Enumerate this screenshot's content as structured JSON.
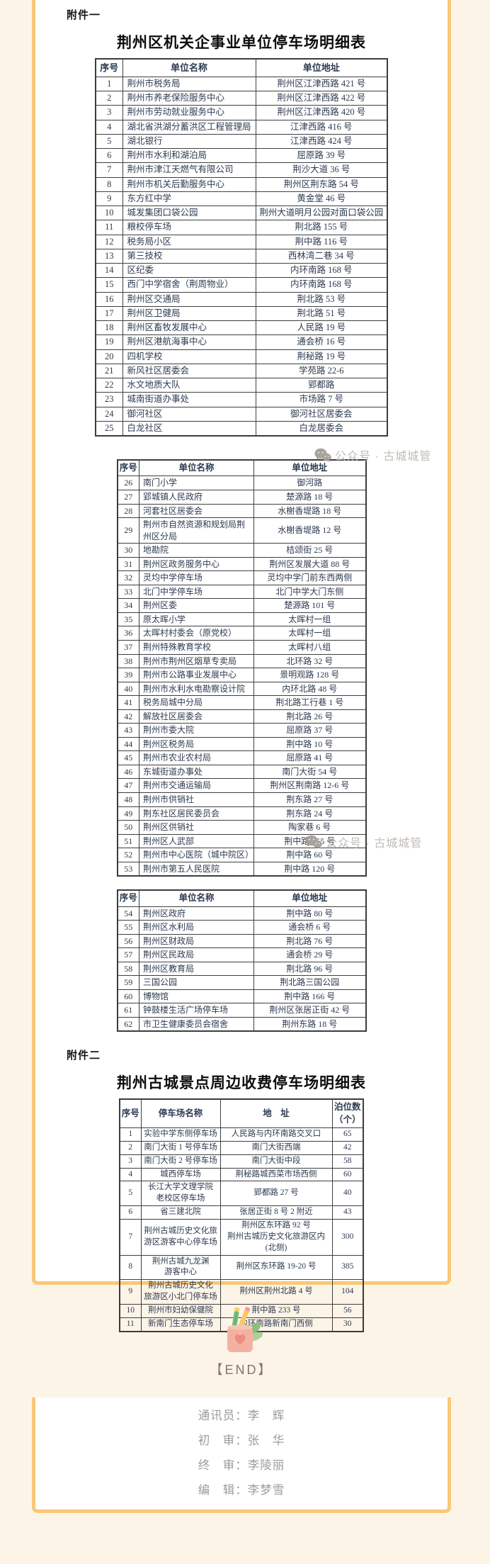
{
  "watermark": {
    "text": "公众号 · 古城城管"
  },
  "attachment1": {
    "label": "附件一",
    "title": "荆州区机关企事业单位停车场明细表",
    "headers": [
      "序号",
      "单位名称",
      "单位地址"
    ],
    "table1_rows": [
      [
        "1",
        "荆州市税务局",
        "荆州区江津西路 421 号"
      ],
      [
        "2",
        "荆州市养老保险服务中心",
        "荆州区江津西路 422 号"
      ],
      [
        "3",
        "荆州市劳动就业服务中心",
        "荆州区江津西路 420 号"
      ],
      [
        "4",
        "湖北省洪湖分蓄洪区工程管理局",
        "江津西路 416 号"
      ],
      [
        "5",
        "湖北银行",
        "江津西路 424 号"
      ],
      [
        "6",
        "荆州市水利和湖泊局",
        "屈原路 39 号"
      ],
      [
        "7",
        "荆州市津江天燃气有限公司",
        "荆沙大道 36 号"
      ],
      [
        "8",
        "荆州市机关后勤服务中心",
        "荆州区荆东路 54 号"
      ],
      [
        "9",
        "东方红中学",
        "黄金堂 46 号"
      ],
      [
        "10",
        "城发集团口袋公园",
        "荆州大道明月公园对面口袋公园"
      ],
      [
        "11",
        "粮校停车场",
        "荆北路 155 号"
      ],
      [
        "12",
        "税务局小区",
        "荆中路 116 号"
      ],
      [
        "13",
        "第三技校",
        "西林湾二巷 34 号"
      ],
      [
        "14",
        "区纪委",
        "内环南路 168 号"
      ],
      [
        "15",
        "西门中学宿舍（荆周物业）",
        "内环南路 168 号"
      ],
      [
        "16",
        "荆州区交通局",
        "荆北路 53 号"
      ],
      [
        "17",
        "荆州区卫健局",
        "荆北路 51 号"
      ],
      [
        "18",
        "荆州区畜牧发展中心",
        "人民路 19 号"
      ],
      [
        "19",
        "荆州区港航海事中心",
        "通会桥 16 号"
      ],
      [
        "20",
        "四机学校",
        "荆秘路 19 号"
      ],
      [
        "21",
        "新风社区居委会",
        "学苑路 22-6"
      ],
      [
        "22",
        "水文地质大队",
        "郢都路"
      ],
      [
        "23",
        "城南街道办事处",
        "市场路 7 号"
      ],
      [
        "24",
        "御河社区",
        "御河社区居委会"
      ],
      [
        "25",
        "白龙社区",
        "白龙居委会"
      ]
    ],
    "table2_rows": [
      [
        "26",
        "南门小学",
        "御河路"
      ],
      [
        "27",
        "郢城镇人民政府",
        "楚源路 18 号"
      ],
      [
        "28",
        "河套社区居委会",
        "水榭香堤路 18 号"
      ],
      [
        "29",
        "荆州市自然资源和规划局荆州区分局",
        "水榭香堤路 12 号"
      ],
      [
        "30",
        "地勘院",
        "桔颂街 25 号"
      ],
      [
        "31",
        "荆州区政务服务中心",
        "荆州区发展大道 88 号"
      ],
      [
        "32",
        "灵均中学停车场",
        "灵均中学门前东西两侧"
      ],
      [
        "33",
        "北门中学停车场",
        "北门中学大门东侧"
      ],
      [
        "34",
        "荆州区委",
        "楚源路 101 号"
      ],
      [
        "35",
        "原太晖小学",
        "太晖村一组"
      ],
      [
        "36",
        "太晖村村委会（原党校）",
        "太晖村一组"
      ],
      [
        "37",
        "荆州特殊教育学校",
        "太晖村八组"
      ],
      [
        "38",
        "荆州市荆州区烟草专卖局",
        "北环路 32 号"
      ],
      [
        "39",
        "荆州市公路事业发展中心",
        "景明观路 128 号"
      ],
      [
        "40",
        "荆州市水利水电勘察设计院",
        "内环北路 48 号"
      ],
      [
        "41",
        "税务局城中分局",
        "荆北路工行巷 1 号"
      ],
      [
        "42",
        "解放社区居委会",
        "荆北路 26 号"
      ],
      [
        "43",
        "荆州市委大院",
        "屈原路 37 号"
      ],
      [
        "44",
        "荆州区税务局",
        "荆中路 10 号"
      ],
      [
        "45",
        "荆州市农业农村局",
        "屈原路 41 号"
      ],
      [
        "46",
        "东城街道办事处",
        "南门大街 54 号"
      ],
      [
        "47",
        "荆州市交通运输局",
        "荆州区荆南路 12-6 号"
      ],
      [
        "48",
        "荆州市供销社",
        "荆东路 27 号"
      ],
      [
        "49",
        "荆东社区居民委员会",
        "荆东路 24 号"
      ],
      [
        "50",
        "荆州区供销社",
        "陶家巷 6 号"
      ],
      [
        "51",
        "荆州区人武部",
        "荆中路 155 号"
      ],
      [
        "52",
        "荆州市中心医院（城中院区）",
        "荆中路 60 号"
      ],
      [
        "53",
        "荆州市第五人民医院",
        "荆中路 120 号"
      ]
    ],
    "table3_rows": [
      [
        "54",
        "荆州区政府",
        "荆中路 80 号"
      ],
      [
        "55",
        "荆州区水利局",
        "通会桥 6 号"
      ],
      [
        "56",
        "荆州区财政局",
        "荆北路 76 号"
      ],
      [
        "57",
        "荆州区民政局",
        "通会桥 29 号"
      ],
      [
        "58",
        "荆州区教育局",
        "荆北路 96 号"
      ],
      [
        "59",
        "三国公园",
        "荆北路三国公园"
      ],
      [
        "60",
        "博物馆",
        "荆中路 166 号"
      ],
      [
        "61",
        "钟鼓楼生活广场停车场",
        "荆州区张居正街 42 号"
      ],
      [
        "62",
        "市卫生健康委员会宿舍",
        "荆州东路 18 号"
      ]
    ]
  },
  "attachment2": {
    "label": "附件二",
    "title": "荆州古城景点周边收费停车场明细表",
    "headers": [
      "序号",
      "停车场名称",
      "地　址",
      "泊位数\n（个）"
    ],
    "rows": [
      [
        "1",
        "实验中学东侧停车场",
        "人民路与内环南路交叉口",
        "65"
      ],
      [
        "2",
        "南门大街 1 号停车场",
        "南门大街西端",
        "42"
      ],
      [
        "3",
        "南门大街 2 号停车场",
        "南门大街中段",
        "58"
      ],
      [
        "4",
        "城西停车场",
        "荆秘路城西菜市场西侧",
        "60"
      ],
      [
        "5",
        "长江大学文理学院\n老校区停车场",
        "郢都路 27 号",
        "40"
      ],
      [
        "6",
        "省三建北院",
        "张居正街 8 号 2 附近",
        "43"
      ],
      [
        "7",
        "荆州古城历史文化旅\n游区游客中心停车场",
        "荆州区东环路 92 号\n荆州古城历史文化旅游区内(北侧)",
        "300"
      ],
      [
        "8",
        "荆州古城九龙渊\n游客中心",
        "荆州区东环路 19-20 号",
        "385"
      ],
      [
        "9",
        "荆州古城历史文化\n旅游区小北门停车场",
        "荆州区荆州北路 4 号",
        "104"
      ],
      [
        "10",
        "荆州市妇幼保健院",
        "荆中路 233 号",
        "56"
      ],
      [
        "11",
        "新南门生态停车场",
        "内环南路新南门西侧",
        "30"
      ]
    ]
  },
  "end_marker": {
    "label": "【END】"
  },
  "footer": {
    "lines": [
      "通讯员：李　辉",
      "初　审：张　华",
      "终　审：李陵丽",
      "编　辑：李梦雪"
    ]
  }
}
